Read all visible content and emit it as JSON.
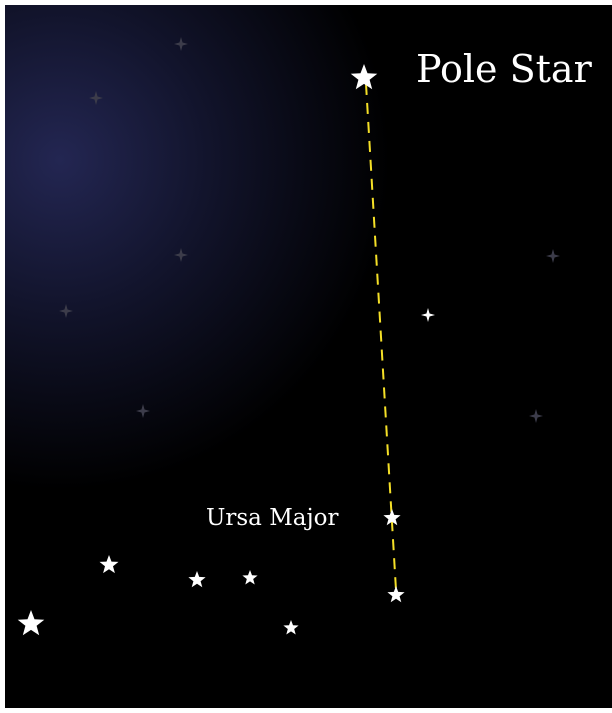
{
  "labels": {
    "pole_star": "Pole Star",
    "ursa_major": "Ursa Major"
  }
}
